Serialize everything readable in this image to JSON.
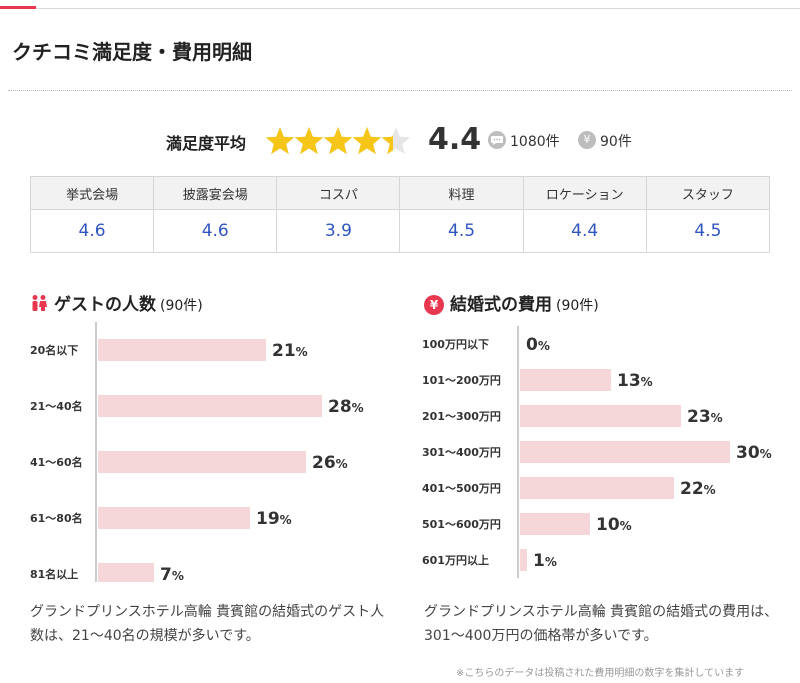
{
  "title": "クチコミ満足度・費用明細",
  "satisfaction": {
    "label": "満足度平均",
    "score": "4.4",
    "rating": 4.4,
    "reviews_count": "1080件",
    "cost_count": "90件",
    "cost_icon": "¥",
    "star_color": "#f5c518"
  },
  "categories": [
    {
      "label": "挙式会場",
      "value": "4.6"
    },
    {
      "label": "披露宴会場",
      "value": "4.6"
    },
    {
      "label": "コスパ",
      "value": "3.9"
    },
    {
      "label": "料理",
      "value": "4.5"
    },
    {
      "label": "ロケーション",
      "value": "4.4"
    },
    {
      "label": "スタッフ",
      "value": "4.5"
    }
  ],
  "guest_section": {
    "title": "ゲストの人数",
    "count": "(90件)",
    "caption": "グランドプリンスホテル高輪 貴賓館の結婚式のゲスト人数は、21〜40名の規模が多いです。"
  },
  "cost_section": {
    "title": "結婚式の費用",
    "count": "(90件)",
    "icon": "¥",
    "caption": "グランドプリンスホテル高輪 貴賓館の結婚式の費用は、301〜400万円の価格帯が多いです。"
  },
  "note": "※こちらのデータは投稿された費用明細の数字を集計しています",
  "colors": {
    "bar": "#f5d7da",
    "accent": "#e8384f",
    "value_blue": "#2f56c0"
  },
  "chart_data": [
    {
      "type": "bar",
      "orientation": "horizontal",
      "title": "ゲストの人数",
      "categories": [
        "20名以下",
        "21〜40名",
        "41〜60名",
        "61〜80名",
        "81名以上"
      ],
      "values": [
        21,
        28,
        26,
        19,
        7
      ],
      "unit": "%",
      "xlim": [
        0,
        30
      ]
    },
    {
      "type": "bar",
      "orientation": "horizontal",
      "title": "結婚式の費用",
      "categories": [
        "100万円以下",
        "101〜200万円",
        "201〜300万円",
        "301〜400万円",
        "401〜500万円",
        "501〜600万円",
        "601万円以上"
      ],
      "values": [
        0,
        13,
        23,
        30,
        22,
        10,
        1
      ],
      "unit": "%",
      "xlim": [
        0,
        30
      ]
    }
  ]
}
